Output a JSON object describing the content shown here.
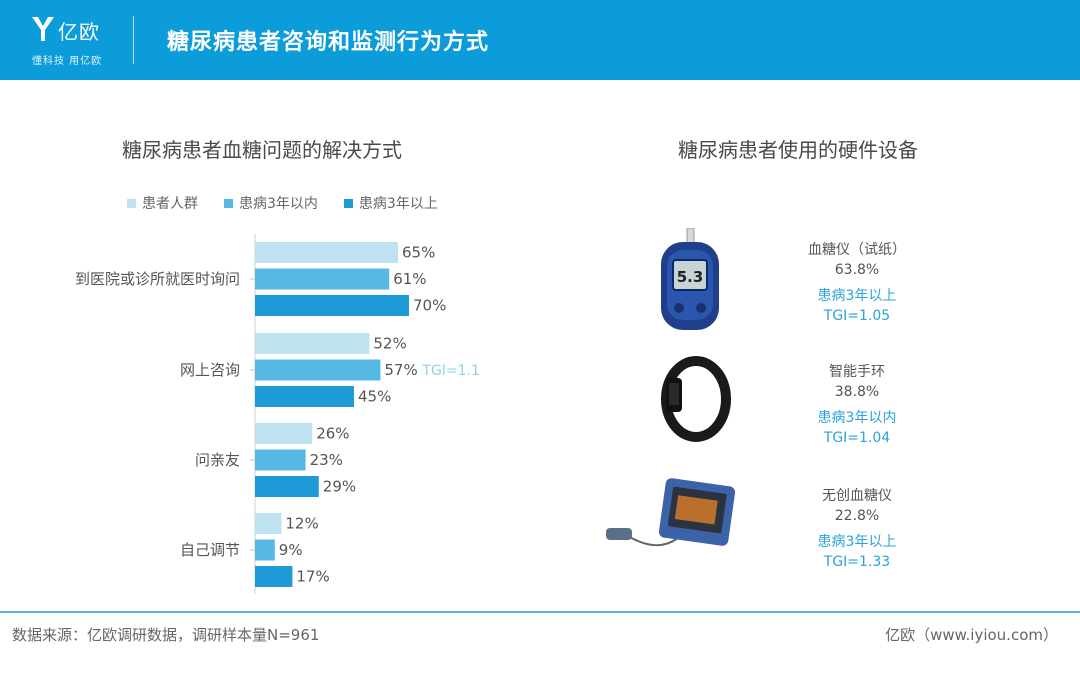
{
  "header": {
    "brand": "亿欧",
    "slogan": "懂科技 用亿欧",
    "title": "糖尿病患者咨询和监测行为方式"
  },
  "left": {
    "title": "糖尿病患者血糖问题的解决方式"
  },
  "right": {
    "title": "糖尿病患者使用的硬件设备",
    "devices": [
      {
        "name": "血糖仪（试纸）",
        "pct": "63.8%",
        "segment": "患病3年以上",
        "tgi": "TGI=1.05",
        "icon": "glucose-meter-icon"
      },
      {
        "name": "智能手环",
        "pct": "38.8%",
        "segment": "患病3年以内",
        "tgi": "TGI=1.04",
        "icon": "smart-band-icon"
      },
      {
        "name": "无创血糖仪",
        "pct": "22.8%",
        "segment": "患病3年以上",
        "tgi": "TGI=1.33",
        "icon": "noninvasive-glucose-device-icon"
      }
    ]
  },
  "chart_data": {
    "type": "bar",
    "orientation": "horizontal",
    "categories": [
      "到医院或诊所就医时询问",
      "网上咨询",
      "问亲友",
      "自己调节"
    ],
    "series": [
      {
        "name": "患者人群",
        "values": [
          65,
          52,
          26,
          12
        ],
        "color": "#bfe2f1"
      },
      {
        "name": "患病3年以内",
        "values": [
          61,
          57,
          23,
          9
        ],
        "color": "#55b9e3"
      },
      {
        "name": "患病3年以上",
        "values": [
          70,
          45,
          29,
          17
        ],
        "color": "#1e9bd6"
      }
    ],
    "value_suffix": "%",
    "annotations": [
      {
        "category": "网上咨询",
        "series": "患病3年以内",
        "text": "TGI=1.1",
        "color": "#8fd0ec"
      }
    ],
    "legend": "top"
  },
  "footer": {
    "source": "数据来源：亿欧调研数据，调研样本量N=961",
    "brand": "亿欧（www.iyiou.com）"
  }
}
